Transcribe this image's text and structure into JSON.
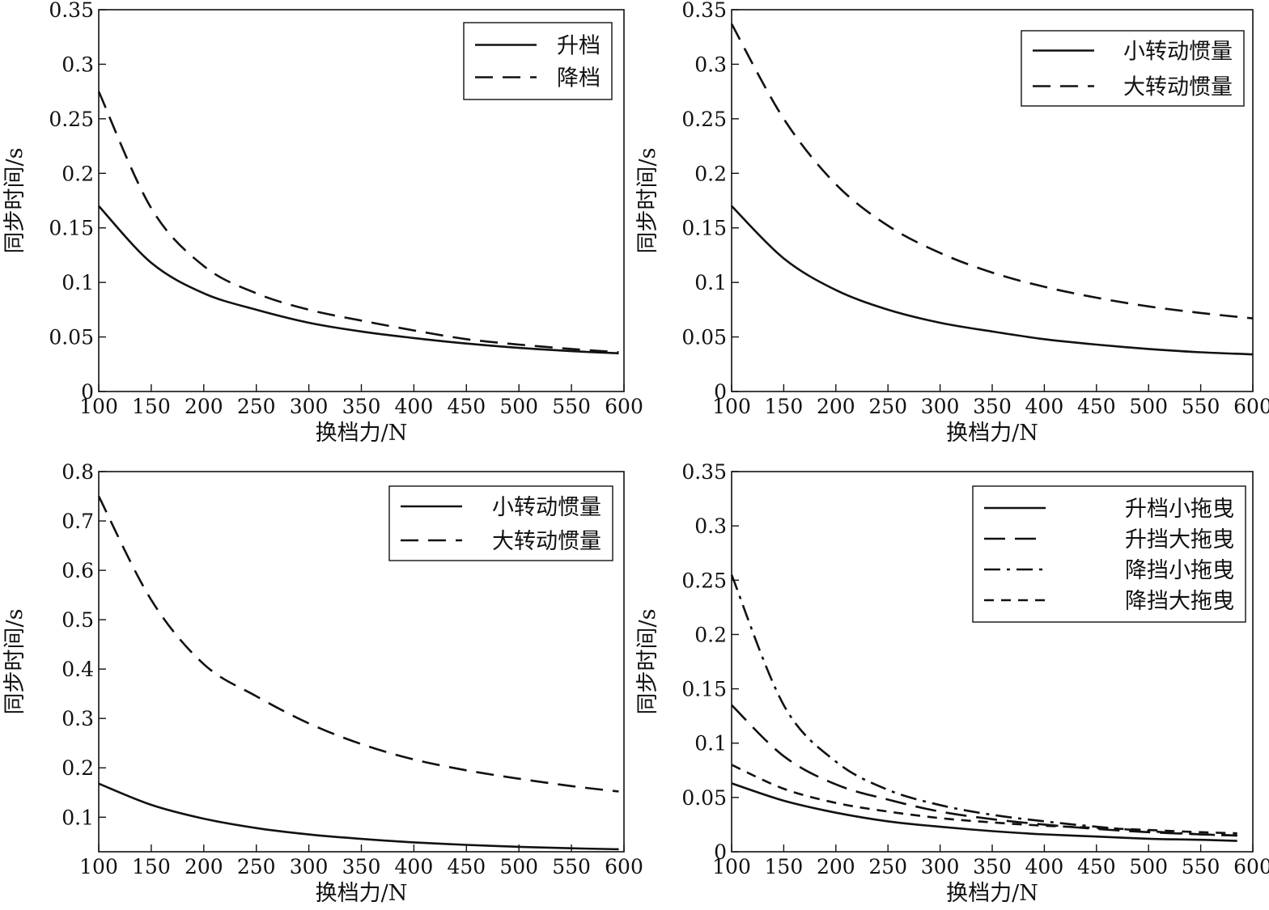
{
  "chart_data": [
    {
      "type": "line",
      "title": "",
      "xlabel": "换档力/N",
      "ylabel": "同步时间/s",
      "xlim": [
        100,
        600
      ],
      "ylim": [
        0,
        0.35
      ],
      "xticks": [
        "100",
        "150",
        "200",
        "250",
        "300",
        "350",
        "400",
        "450",
        "500",
        "550",
        "600"
      ],
      "yticks": [
        "0",
        "0.05",
        "0.1",
        "0.15",
        "0.2",
        "0.25",
        "0.3",
        "0.35"
      ],
      "legend_position": "top-right",
      "grid": false,
      "series": [
        {
          "name": "升档",
          "style": "solid",
          "x": [
            100,
            150,
            200,
            250,
            300,
            350,
            400,
            450,
            500,
            550,
            595
          ],
          "y": [
            0.17,
            0.118,
            0.09,
            0.075,
            0.063,
            0.055,
            0.049,
            0.044,
            0.04,
            0.037,
            0.035
          ]
        },
        {
          "name": "降档",
          "style": "dashed",
          "x": [
            100,
            150,
            200,
            250,
            300,
            350,
            400,
            450,
            500,
            550,
            595
          ],
          "y": [
            0.275,
            0.168,
            0.115,
            0.09,
            0.075,
            0.065,
            0.056,
            0.048,
            0.043,
            0.039,
            0.036
          ]
        }
      ]
    },
    {
      "type": "line",
      "title": "",
      "xlabel": "换档力/N",
      "ylabel": "同步时间/s",
      "xlim": [
        100,
        600
      ],
      "ylim": [
        0,
        0.35
      ],
      "xticks": [
        "100",
        "150",
        "200",
        "250",
        "300",
        "350",
        "400",
        "450",
        "500",
        "550",
        "600"
      ],
      "yticks": [
        "0",
        "0.05",
        "0.1",
        "0.15",
        "0.2",
        "0.25",
        "0.3",
        "0.35"
      ],
      "legend_position": "top-right",
      "grid": false,
      "series": [
        {
          "name": "小转动惯量",
          "style": "solid",
          "x": [
            100,
            150,
            200,
            250,
            300,
            350,
            400,
            450,
            500,
            550,
            600
          ],
          "y": [
            0.17,
            0.122,
            0.093,
            0.075,
            0.063,
            0.055,
            0.048,
            0.043,
            0.039,
            0.036,
            0.034
          ]
        },
        {
          "name": "大转动惯量",
          "style": "dashed",
          "x": [
            100,
            150,
            200,
            250,
            300,
            350,
            400,
            450,
            500,
            550,
            600
          ],
          "y": [
            0.337,
            0.25,
            0.19,
            0.152,
            0.127,
            0.109,
            0.096,
            0.086,
            0.078,
            0.072,
            0.067
          ]
        }
      ]
    },
    {
      "type": "line",
      "title": "",
      "xlabel": "换档力/N",
      "ylabel": "同步时间/s",
      "xlim": [
        100,
        600
      ],
      "ylim": [
        0.03,
        0.8
      ],
      "xticks": [
        "100",
        "150",
        "200",
        "250",
        "300",
        "350",
        "400",
        "450",
        "500",
        "550",
        "600"
      ],
      "yticks": [
        "0.1",
        "0.2",
        "0.3",
        "0.4",
        "0.5",
        "0.6",
        "0.7",
        "0.8"
      ],
      "legend_position": "top-right",
      "grid": false,
      "series": [
        {
          "name": "小转动惯量",
          "style": "solid",
          "x": [
            100,
            150,
            200,
            250,
            300,
            350,
            400,
            450,
            500,
            550,
            595
          ],
          "y": [
            0.168,
            0.125,
            0.097,
            0.078,
            0.065,
            0.056,
            0.049,
            0.044,
            0.04,
            0.037,
            0.035
          ]
        },
        {
          "name": "大转动惯量",
          "style": "dashed",
          "x": [
            100,
            150,
            200,
            250,
            300,
            350,
            400,
            450,
            500,
            550,
            595
          ],
          "y": [
            0.75,
            0.54,
            0.41,
            0.345,
            0.29,
            0.248,
            0.217,
            0.195,
            0.178,
            0.163,
            0.152
          ]
        }
      ]
    },
    {
      "type": "line",
      "title": "",
      "xlabel": "换档力/N",
      "ylabel": "同步时间/s",
      "xlim": [
        100,
        600
      ],
      "ylim": [
        0,
        0.35
      ],
      "xticks": [
        "100",
        "150",
        "200",
        "250",
        "300",
        "350",
        "400",
        "450",
        "500",
        "550",
        "600"
      ],
      "yticks": [
        "0",
        "0.05",
        "0.1",
        "0.15",
        "0.2",
        "0.25",
        "0.3",
        "0.35"
      ],
      "legend_position": "top-right",
      "grid": false,
      "series": [
        {
          "name": "升档小拖曳",
          "style": "solid",
          "x": [
            100,
            150,
            200,
            250,
            300,
            350,
            400,
            450,
            500,
            550,
            585
          ],
          "y": [
            0.063,
            0.047,
            0.036,
            0.028,
            0.023,
            0.019,
            0.016,
            0.014,
            0.012,
            0.011,
            0.01
          ]
        },
        {
          "name": "升挡大拖曳",
          "style": "longdash",
          "x": [
            100,
            150,
            200,
            250,
            300,
            350,
            400,
            450,
            500,
            550,
            585
          ],
          "y": [
            0.135,
            0.088,
            0.062,
            0.048,
            0.037,
            0.03,
            0.025,
            0.021,
            0.018,
            0.016,
            0.015
          ]
        },
        {
          "name": "降挡小拖曳",
          "style": "dashdot",
          "x": [
            100,
            150,
            200,
            250,
            300,
            350,
            400,
            450,
            500,
            550,
            585
          ],
          "y": [
            0.255,
            0.135,
            0.083,
            0.057,
            0.043,
            0.034,
            0.028,
            0.023,
            0.019,
            0.016,
            0.015
          ]
        },
        {
          "name": "降挡大拖曳",
          "style": "shortdash",
          "x": [
            100,
            150,
            200,
            250,
            300,
            350,
            400,
            450,
            500,
            550,
            585
          ],
          "y": [
            0.08,
            0.058,
            0.045,
            0.037,
            0.031,
            0.027,
            0.024,
            0.022,
            0.02,
            0.018,
            0.017
          ]
        }
      ]
    }
  ]
}
